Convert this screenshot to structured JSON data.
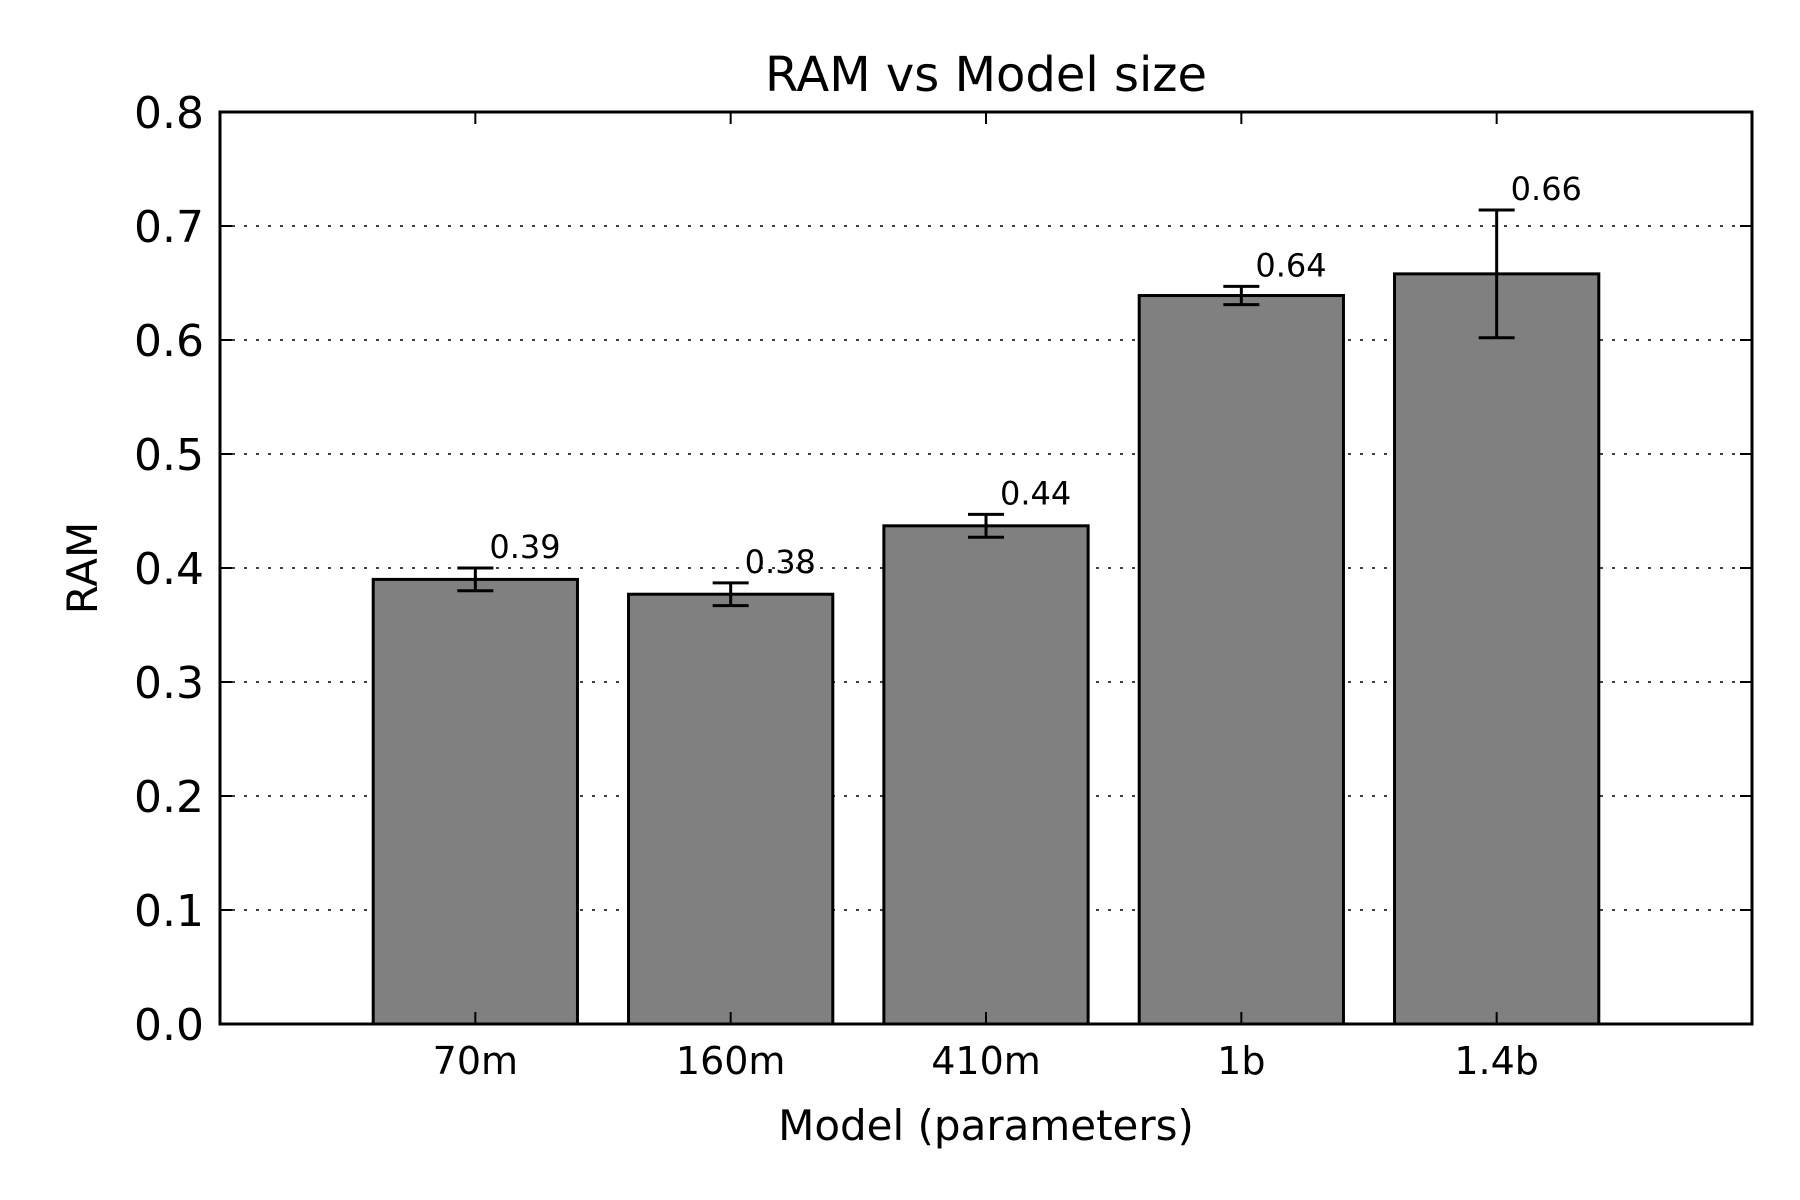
{
  "chart_data": {
    "type": "bar",
    "title": "RAM vs Model size",
    "xlabel": "Model (parameters)",
    "ylabel": "RAM",
    "categories": [
      "70m",
      "160m",
      "410m",
      "1b",
      "1.4b"
    ],
    "values": [
      0.39,
      0.377,
      0.437,
      0.639,
      0.658
    ],
    "errors": [
      0.01,
      0.01,
      0.01,
      0.008,
      0.056
    ],
    "value_labels": [
      "0.39",
      "0.38",
      "0.44",
      "0.64",
      "0.66"
    ],
    "ylim": [
      0,
      0.8
    ],
    "yticks": [
      "0.0",
      "0.1",
      "0.2",
      "0.3",
      "0.4",
      "0.5",
      "0.6",
      "0.7",
      "0.8"
    ],
    "grid": "horizontal dotted",
    "bar_color": "#808080"
  }
}
